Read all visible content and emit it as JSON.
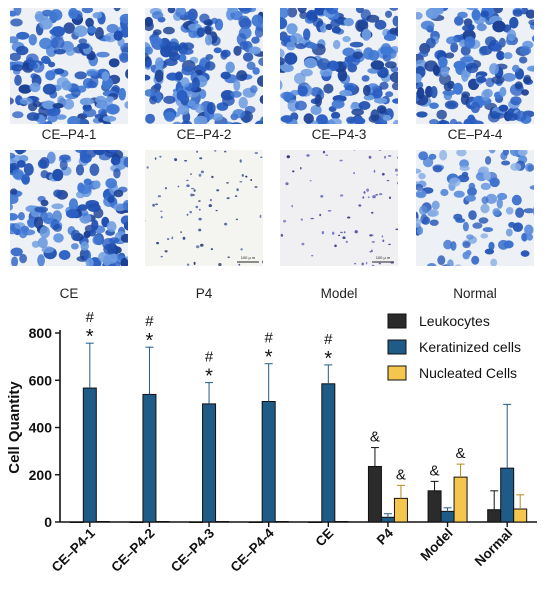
{
  "micrographs": {
    "panels": [
      {
        "label": "CE–P4-1",
        "density": "high",
        "tone": "blue"
      },
      {
        "label": "CE–P4-2",
        "density": "high",
        "tone": "blue"
      },
      {
        "label": "CE–P4-3",
        "density": "high",
        "tone": "blue"
      },
      {
        "label": "CE–P4-4",
        "density": "high",
        "tone": "blue"
      },
      {
        "label": "CE",
        "density": "high",
        "tone": "blue"
      },
      {
        "label": "P4",
        "density": "sparse",
        "tone": "pale",
        "scale_label": "100 μ m"
      },
      {
        "label": "Model",
        "density": "sparse",
        "tone": "violet",
        "scale_label": "100 μ m"
      },
      {
        "label": "Normal",
        "density": "medium",
        "tone": "blue"
      }
    ]
  },
  "chart_data": {
    "type": "bar",
    "categories": [
      "CE–P4-1",
      "CE–P4-2",
      "CE–P4-3",
      "CE–P4-4",
      "CE",
      "P4",
      "Model",
      "Normal"
    ],
    "series": [
      {
        "name": "Leukocytes",
        "color": "#2b2b2b",
        "values": [
          0,
          0,
          0,
          0,
          0,
          235,
          132,
          52
        ],
        "errors": [
          0,
          0,
          0,
          0,
          0,
          80,
          40,
          80
        ]
      },
      {
        "name": "Keratinized cells",
        "color": "#1e5b86",
        "values": [
          567,
          540,
          500,
          510,
          585,
          20,
          45,
          228
        ],
        "errors": [
          190,
          200,
          90,
          160,
          80,
          15,
          15,
          270
        ]
      },
      {
        "name": "Nucleated Cells",
        "color": "#f4c64e",
        "values": [
          2,
          2,
          2,
          2,
          2,
          100,
          190,
          55
        ],
        "errors": [
          0,
          0,
          0,
          0,
          0,
          55,
          55,
          60
        ]
      }
    ],
    "annotations": [
      {
        "category": "CE–P4-1",
        "series": "Keratinized cells",
        "marks": [
          "#",
          "*"
        ]
      },
      {
        "category": "CE–P4-2",
        "series": "Keratinized cells",
        "marks": [
          "#",
          "*"
        ]
      },
      {
        "category": "CE–P4-3",
        "series": "Keratinized cells",
        "marks": [
          "#",
          "*"
        ]
      },
      {
        "category": "CE–P4-4",
        "series": "Keratinized cells",
        "marks": [
          "#",
          "*"
        ]
      },
      {
        "category": "CE",
        "series": "Keratinized cells",
        "marks": [
          "#",
          "*"
        ]
      },
      {
        "category": "P4",
        "series": "Leukocytes",
        "marks": [
          "&"
        ]
      },
      {
        "category": "P4",
        "series": "Nucleated Cells",
        "marks": [
          "&"
        ]
      },
      {
        "category": "Model",
        "series": "Leukocytes",
        "marks": [
          "&"
        ]
      },
      {
        "category": "Model",
        "series": "Nucleated Cells",
        "marks": [
          "&"
        ]
      }
    ],
    "ylabel": "Cell Quantity",
    "xlabel": "",
    "ylim": [
      0,
      800
    ],
    "yticks": [
      0,
      200,
      400,
      600,
      800
    ],
    "grid": false,
    "legend_position": "top-right"
  }
}
